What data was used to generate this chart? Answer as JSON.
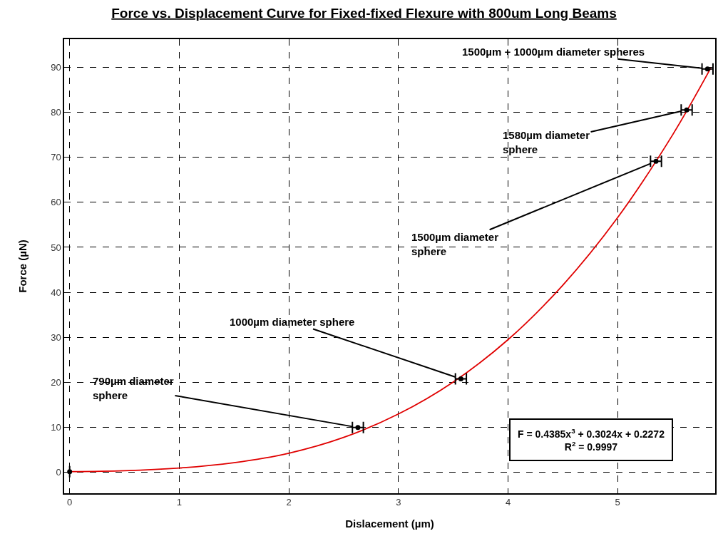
{
  "chart_data": {
    "type": "scatter",
    "title": "Force vs. Displacement Curve for Fixed-fixed Flexure with 800um Long Beams",
    "xlabel": "Dislacement (µm)",
    "ylabel": "Force (µN)",
    "series": [
      {
        "color": "#000000",
        "marker": "circle",
        "x": [
          0,
          2.63,
          3.57,
          5.35,
          5.63,
          5.82
        ],
        "values": [
          0.2,
          10.0,
          20.8,
          69.1,
          80.5,
          89.6
        ],
        "xerrors": [
          null,
          0.05,
          0.05,
          0.05,
          0.05,
          0.05
        ]
      },
      {
        "type": "line",
        "marker": "none",
        "color": "#e00000",
        "x": [
          0,
          0.5,
          1,
          1.5,
          2,
          2.5,
          3,
          3.5,
          4,
          4.5,
          5,
          5.5,
          5.85
        ],
        "values": [
          0.2,
          0.4,
          1.0,
          2.2,
          4.3,
          7.8,
          13.0,
          20.1,
          29.5,
          41.6,
          56.6,
          74.9,
          89.8
        ]
      }
    ],
    "annotations": [
      {
        "text": "790µm diameter\nsphere",
        "x": 2.63,
        "y": 10.0
      },
      {
        "text": "1000µm diameter sphere",
        "x": 3.57,
        "y": 20.8
      },
      {
        "text": "1500µm diameter\nsphere",
        "x": 5.35,
        "y": 69.1
      },
      {
        "text": "1580µm diameter\nsphere",
        "x": 5.63,
        "y": 80.5
      },
      {
        "text": "1500µm + 1000µm diameter spheres",
        "x": 5.82,
        "y": 89.6
      },
      "F = 0.4385x$^{3}$ + 0.3024x + 0.2272\nR$^{2}$ = 0.9997"
    ],
    "xlim": [
      -0.05,
      5.89
    ],
    "ylim": [
      -4.6,
      96.2
    ],
    "xticks": [
      0,
      1,
      2,
      3,
      4,
      5
    ],
    "yticks": [
      0,
      10,
      20,
      30,
      40,
      50,
      60,
      70,
      80,
      90
    ],
    "grid": true,
    "line_style": "solid"
  }
}
